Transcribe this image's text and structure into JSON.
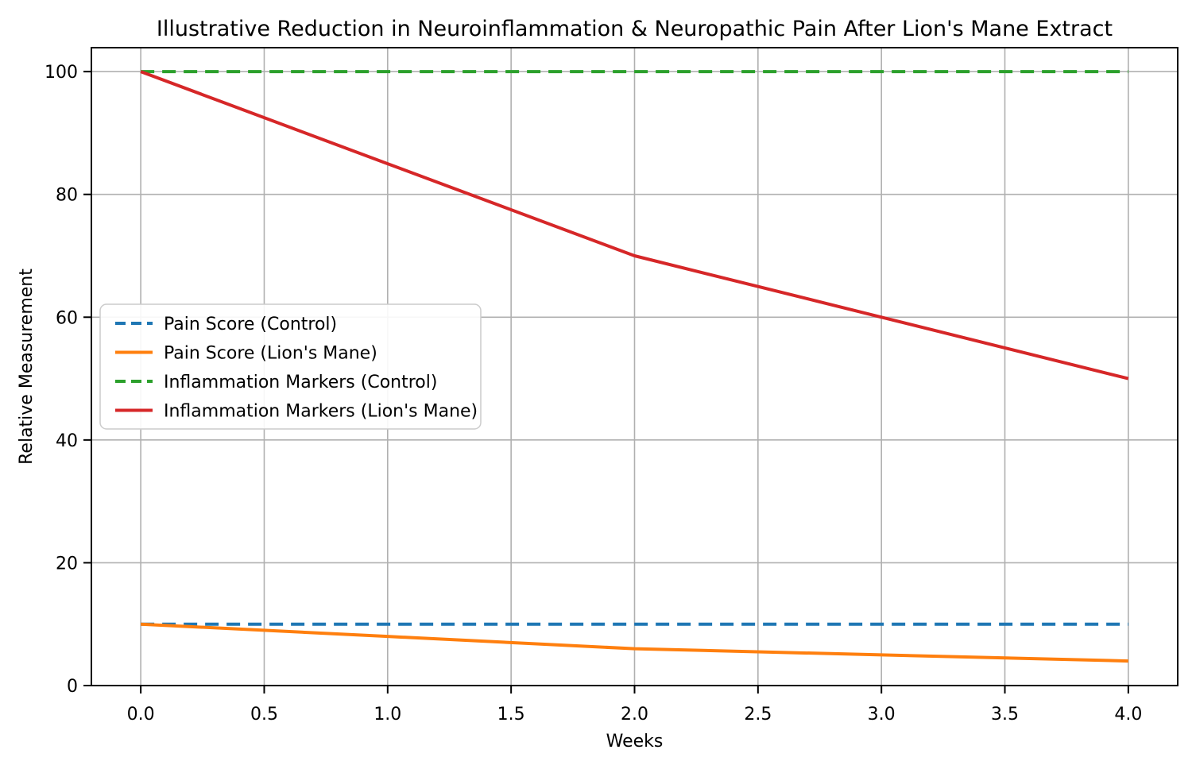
{
  "chart_data": {
    "type": "line",
    "title": "Illustrative Reduction in Neuroinflammation & Neuropathic Pain After Lion's Mane Extract",
    "xlabel": "Weeks",
    "ylabel": "Relative Measurement",
    "x": [
      0,
      1,
      2,
      3,
      4
    ],
    "series": [
      {
        "name": "Pain Score (Control)",
        "values": [
          10,
          10,
          10,
          10,
          10
        ],
        "color": "#1f77b4",
        "style": "dashed"
      },
      {
        "name": "Pain Score (Lion's Mane)",
        "values": [
          10,
          8,
          6,
          5,
          4
        ],
        "color": "#ff7f0e",
        "style": "solid"
      },
      {
        "name": "Inflammation Markers (Control)",
        "values": [
          100,
          100,
          100,
          100,
          100
        ],
        "color": "#2ca02c",
        "style": "dashed"
      },
      {
        "name": "Inflammation Markers (Lion's Mane)",
        "values": [
          100,
          85,
          70,
          60,
          50
        ],
        "color": "#d62728",
        "style": "solid"
      }
    ],
    "xticks": [
      0.0,
      0.5,
      1.0,
      1.5,
      2.0,
      2.5,
      3.0,
      3.5,
      4.0
    ],
    "xtick_labels": [
      "0.0",
      "0.5",
      "1.0",
      "1.5",
      "2.0",
      "2.5",
      "3.0",
      "3.5",
      "4.0"
    ],
    "yticks": [
      0,
      20,
      40,
      60,
      80,
      100
    ],
    "ytick_labels": [
      "0",
      "20",
      "40",
      "60",
      "80",
      "100"
    ],
    "xlim": [
      -0.2,
      4.2
    ],
    "ylim": [
      0,
      103.9
    ],
    "grid": true,
    "legend_position": "center-left",
    "colors": {
      "grid": "#b0b0b0",
      "spine": "#000000",
      "text": "#000000",
      "legend_border": "#cccccc",
      "background": "#ffffff"
    }
  }
}
